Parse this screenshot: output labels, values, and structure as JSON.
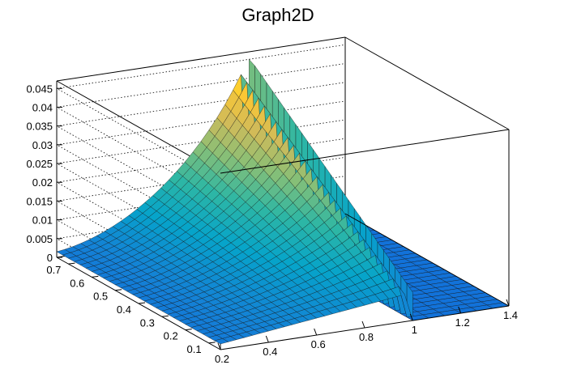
{
  "chart_data": {
    "type": "surface",
    "title": "Graph2D",
    "x_axis": {
      "range": [
        0.2,
        1.4
      ],
      "ticks": [
        "0.2",
        "0.4",
        "0.6",
        "0.8",
        "1",
        "1.2",
        "1.4"
      ]
    },
    "y_axis": {
      "range": [
        0.05,
        0.75
      ],
      "ticks": [
        "0.1",
        "0.2",
        "0.3",
        "0.4",
        "0.5",
        "0.6",
        "0.7"
      ]
    },
    "z_axis": {
      "range": [
        0,
        0.047
      ],
      "ticks": [
        "0",
        "0.005",
        "0.01",
        "0.015",
        "0.02",
        "0.025",
        "0.03",
        "0.035",
        "0.04",
        "0.045"
      ]
    },
    "grid": true,
    "colormap": [
      "#352a87",
      "#0f5cdd",
      "#1481d6",
      "#06a4ca",
      "#2eb7a4",
      "#87bf77",
      "#d1bb59",
      "#fec832",
      "#f9fb0e"
    ],
    "surface_summary": {
      "plateau_max_z": 0.045,
      "plateau_x_range": [
        0.2,
        1.0
      ],
      "peak": {
        "x": 1.0,
        "y": 0.7,
        "z": 0.045
      },
      "low_region_x": [
        1.0,
        1.4
      ],
      "low_region_z": 0.0
    }
  }
}
